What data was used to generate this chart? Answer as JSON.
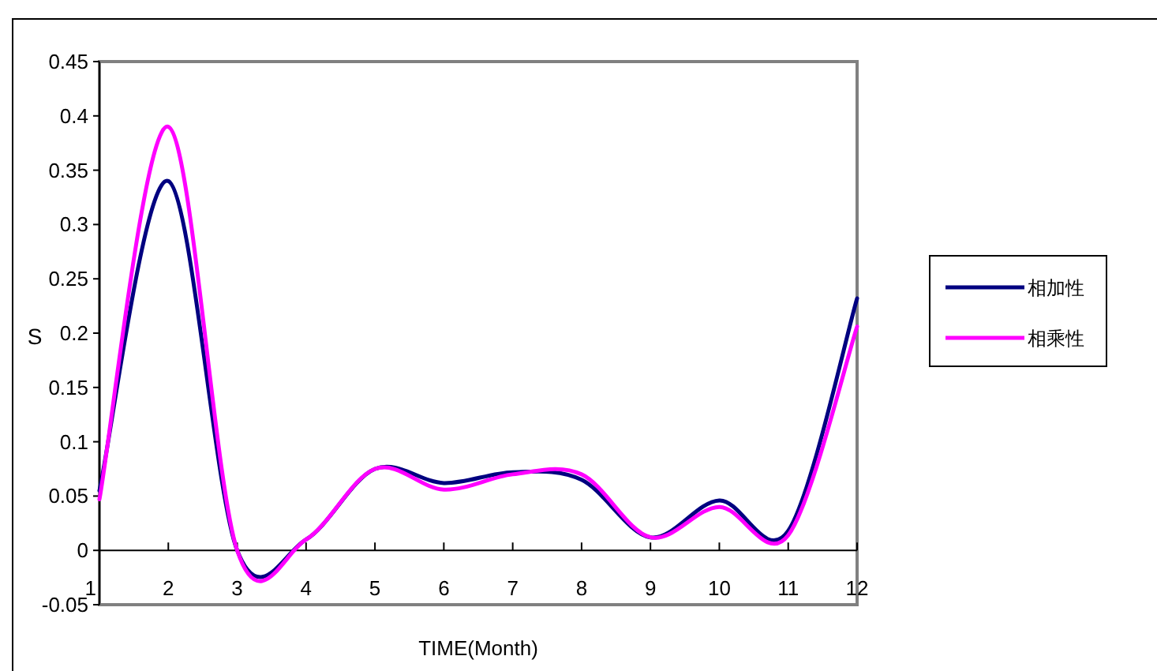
{
  "chart_data": {
    "type": "line",
    "xlabel": "TIME(Month)",
    "ylabel": "S",
    "x": [
      1,
      2,
      3,
      4,
      5,
      6,
      7,
      8,
      9,
      10,
      11,
      12
    ],
    "xlim": [
      1,
      12
    ],
    "xticks": [
      1,
      2,
      3,
      4,
      5,
      6,
      7,
      8,
      9,
      10,
      11,
      12
    ],
    "ylim": [
      -0.05,
      0.45
    ],
    "yticks": [
      -0.05,
      0,
      0.05,
      0.1,
      0.15,
      0.2,
      0.25,
      0.3,
      0.35,
      0.4,
      0.45
    ],
    "series": [
      {
        "name": "相加性",
        "color": "#000080",
        "values": [
          0.055,
          0.34,
          0.0,
          0.01,
          0.075,
          0.062,
          0.072,
          0.065,
          0.012,
          0.046,
          0.018,
          0.232
        ]
      },
      {
        "name": "相乘性",
        "color": "#ff00ff",
        "values": [
          0.047,
          0.39,
          0.0,
          0.01,
          0.075,
          0.056,
          0.07,
          0.07,
          0.012,
          0.04,
          0.014,
          0.206
        ]
      }
    ],
    "legend": "right",
    "marker": "none",
    "line_style": "solid"
  }
}
